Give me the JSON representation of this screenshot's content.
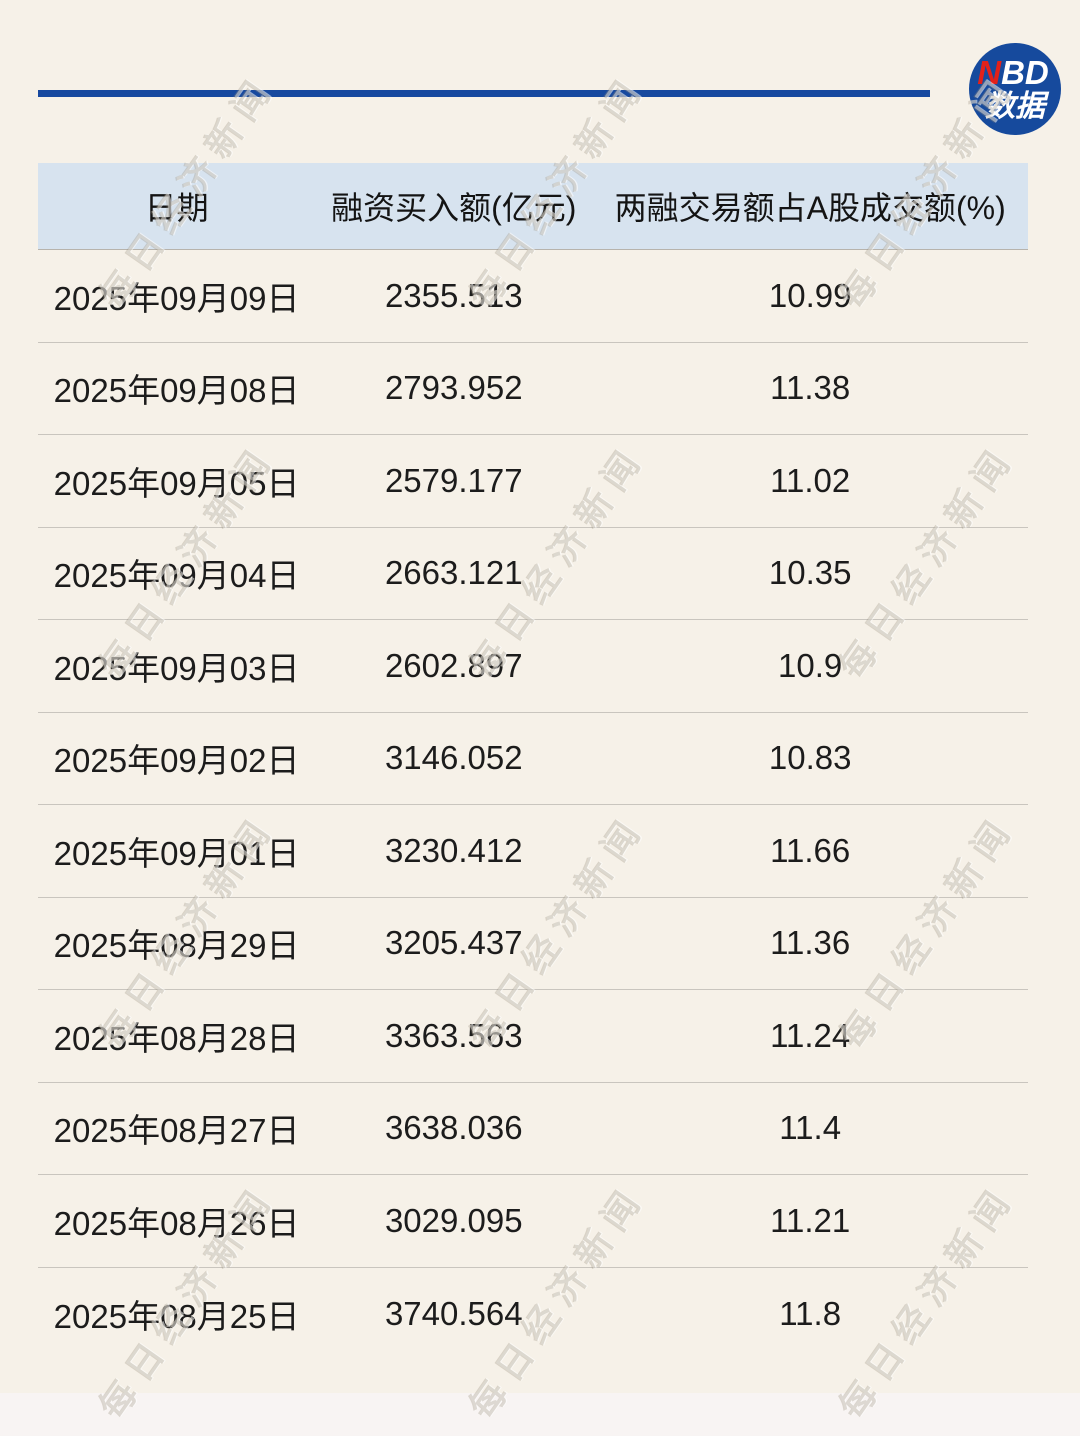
{
  "page": {
    "background_color": "#f6f1e8",
    "footer_strip_color": "#f8f4f3"
  },
  "brand": {
    "rule_color": "#17499f",
    "logo": {
      "circle_color": "#164a9d",
      "n_part": "N",
      "bd_part": "BD",
      "n_color": "#e32119",
      "line2": "数据",
      "text_color": "#ffffff"
    }
  },
  "watermark": {
    "text": "每日经济新闻",
    "color": "rgba(148,138,118,0.30)"
  },
  "table": {
    "header_bg": "#d7e3ef",
    "columns": [
      "日期",
      "融资买入额(亿元)",
      "两融交易额占A股成交额(%)"
    ],
    "rows": [
      [
        "2025年09月09日",
        "2355.513",
        "10.99"
      ],
      [
        "2025年09月08日",
        "2793.952",
        "11.38"
      ],
      [
        "2025年09月05日",
        "2579.177",
        "11.02"
      ],
      [
        "2025年09月04日",
        "2663.121",
        "10.35"
      ],
      [
        "2025年09月03日",
        "2602.897",
        "10.9"
      ],
      [
        "2025年09月02日",
        "3146.052",
        "10.83"
      ],
      [
        "2025年09月01日",
        "3230.412",
        "11.66"
      ],
      [
        "2025年08月29日",
        "3205.437",
        "11.36"
      ],
      [
        "2025年08月28日",
        "3363.563",
        "11.24"
      ],
      [
        "2025年08月27日",
        "3638.036",
        "11.4"
      ],
      [
        "2025年08月26日",
        "3029.095",
        "11.21"
      ],
      [
        "2025年08月25日",
        "3740.564",
        "11.8"
      ]
    ]
  },
  "chart_data": {
    "type": "table",
    "title": "",
    "columns": [
      "日期",
      "融资买入额(亿元)",
      "两融交易额占A股成交额(%)"
    ],
    "dates": [
      "2025年09月09日",
      "2025年09月08日",
      "2025年09月05日",
      "2025年09月04日",
      "2025年09月03日",
      "2025年09月02日",
      "2025年09月01日",
      "2025年08月29日",
      "2025年08月28日",
      "2025年08月27日",
      "2025年08月26日",
      "2025年08月25日"
    ],
    "series": [
      {
        "name": "融资买入额(亿元)",
        "values": [
          2355.513,
          2793.952,
          2579.177,
          2663.121,
          2602.897,
          3146.052,
          3230.412,
          3205.437,
          3363.563,
          3638.036,
          3029.095,
          3740.564
        ]
      },
      {
        "name": "两融交易额占A股成交额(%)",
        "values": [
          10.99,
          11.38,
          11.02,
          10.35,
          10.9,
          10.83,
          11.66,
          11.36,
          11.24,
          11.4,
          11.21,
          11.8
        ]
      }
    ]
  }
}
